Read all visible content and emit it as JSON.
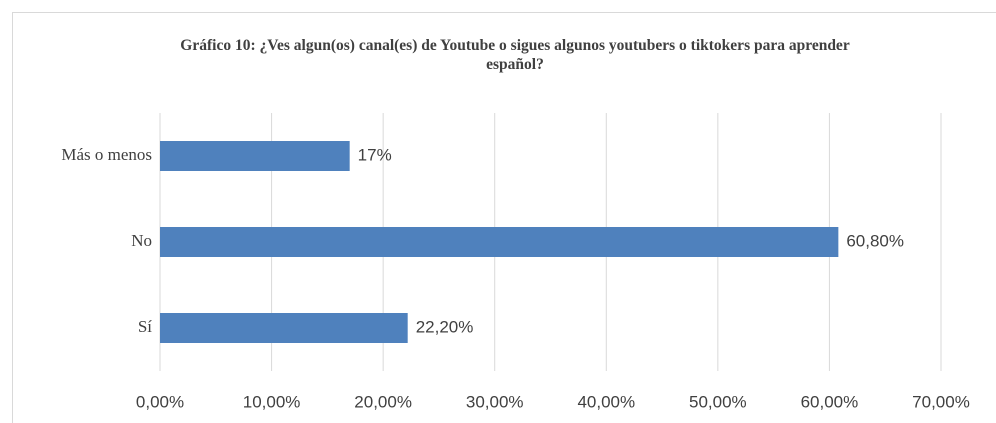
{
  "chart_data": {
    "type": "bar",
    "orientation": "horizontal",
    "title": "Gráfico 10: ¿Ves algun(os) canal(es) de Youtube o sigues algunos youtubers o tiktokers para aprender español?",
    "categories": [
      "Más o menos",
      "No",
      "Sí"
    ],
    "values": [
      17,
      60.8,
      22.2
    ],
    "value_labels": [
      "17%",
      "60,80%",
      "22,20%"
    ],
    "color": "#4f81bd",
    "xlim": [
      0,
      70
    ],
    "xticks": [
      {
        "value": 0,
        "label": "0,00%"
      },
      {
        "value": 10,
        "label": "10,00%"
      },
      {
        "value": 20,
        "label": "20,00%"
      },
      {
        "value": 30,
        "label": "30,00%"
      },
      {
        "value": 40,
        "label": "40,00%"
      },
      {
        "value": 50,
        "label": "50,00%"
      },
      {
        "value": 60,
        "label": "60,00%"
      },
      {
        "value": 70,
        "label": "70,00%"
      }
    ],
    "grid": true
  }
}
